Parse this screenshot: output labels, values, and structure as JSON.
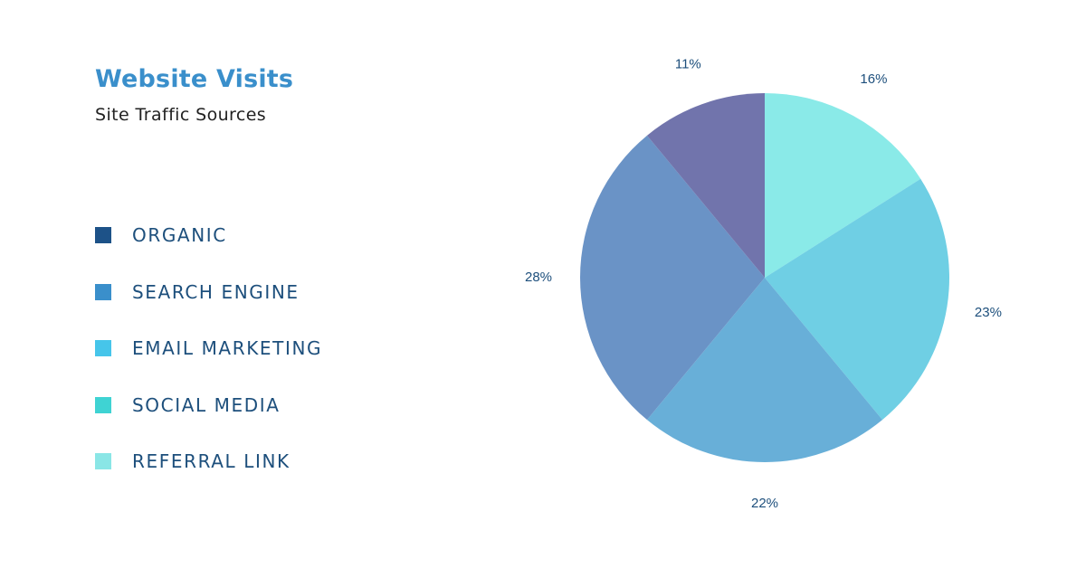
{
  "chart_data": {
    "type": "pie",
    "title": "Website Visits",
    "subtitle": "Site Traffic Sources",
    "legend": {
      "placement": "left",
      "entries": [
        {
          "label": "ORGANIC",
          "color": "#1d5288"
        },
        {
          "label": "SEARCH ENGINE",
          "color": "#3a8fcb"
        },
        {
          "label": "EMAIL MARKETING",
          "color": "#46c5ea"
        },
        {
          "label": "SOCIAL MEDIA",
          "color": "#3fd3d3"
        },
        {
          "label": "REFERRAL LINK",
          "color": "#8ae6e6"
        }
      ]
    },
    "slices": [
      {
        "value": 16,
        "label": "16%",
        "color": "#8aeae8"
      },
      {
        "value": 23,
        "label": "23%",
        "color": "#6fcfe4"
      },
      {
        "value": 22,
        "label": "22%",
        "color": "#68afd8"
      },
      {
        "value": 28,
        "label": "28%",
        "color": "#6a93c6"
      },
      {
        "value": 11,
        "label": "11%",
        "color": "#7174ac"
      }
    ]
  }
}
